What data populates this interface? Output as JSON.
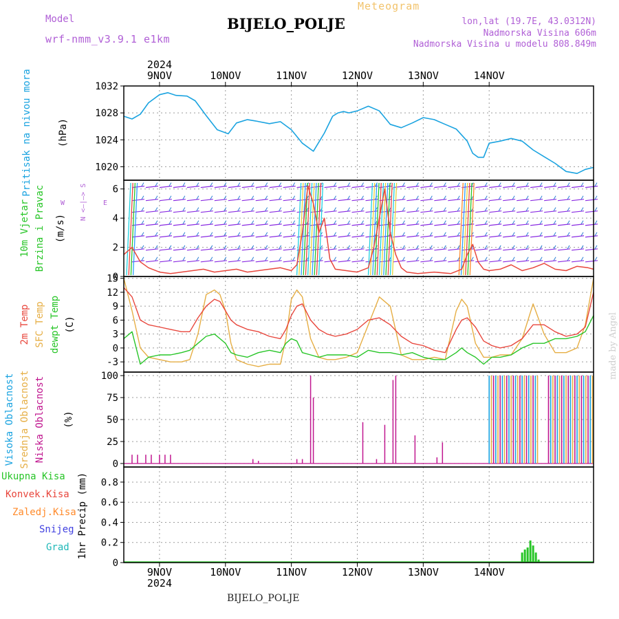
{
  "header": {
    "title": "BIJELO_POLJE",
    "meteogram_label": "Meteogram",
    "model_label": "Model",
    "model_value": "wrf-nmm_v3.9.1  e1km",
    "lonlat": "lon,lat (19.7E, 43.0312N)",
    "elevation": "Nadmorska Visina 606m",
    "model_elevation": "Nadmorska Visina u modelu 808.849m",
    "credit": "made by Angel",
    "footer": "BIJELO_POLJE"
  },
  "colors": {
    "pressure": "#1aa3e0",
    "high_cloud": "#1aa3e0",
    "mid_cloud": "#e6ae44",
    "low_cloud": "#c0168f",
    "temp2m": "#e8463c",
    "sfc_temp": "#e6ae44",
    "dewpt": "#27c527",
    "total_precip": "#27c527",
    "wind_label": "#27c527",
    "legend_purple": "#b05fd6"
  },
  "chart_data": [
    {
      "type": "line",
      "name": "pressure",
      "ylabel": "Pritisak na nivou mora",
      "unit": "(hPa)",
      "ylim": [
        1018,
        1032
      ],
      "yticks": [
        1020,
        1024,
        1028,
        1032
      ],
      "grid": true,
      "xdays": [
        "9NOV",
        "10NOV",
        "11NOV",
        "12NOV",
        "13NOV",
        "14NOV"
      ],
      "xyear": "2024",
      "xlim_hours": [
        -13,
        158
      ],
      "x": [
        -13,
        -10,
        -7,
        -4,
        0,
        3,
        6,
        10,
        13,
        17,
        21,
        25,
        28,
        32,
        35,
        40,
        44,
        48,
        52,
        56,
        60,
        63,
        65,
        67,
        69,
        72,
        76,
        80,
        84,
        88,
        92,
        96,
        100,
        104,
        108,
        112,
        114,
        116,
        118,
        120,
        124,
        128,
        132,
        136,
        140,
        144,
        148,
        152,
        155,
        158
      ],
      "values": [
        1027.5,
        1027.1,
        1027.8,
        1029.5,
        1030.7,
        1031.0,
        1030.6,
        1030.5,
        1029.8,
        1027.6,
        1025.5,
        1024.9,
        1026.5,
        1027.0,
        1026.8,
        1026.4,
        1026.7,
        1025.5,
        1023.5,
        1022.3,
        1025.0,
        1027.5,
        1028.0,
        1028.2,
        1028.0,
        1028.3,
        1029.0,
        1028.3,
        1026.3,
        1025.8,
        1026.5,
        1027.3,
        1027.0,
        1026.3,
        1025.6,
        1023.8,
        1022.0,
        1021.4,
        1021.4,
        1023.5,
        1023.8,
        1024.2,
        1023.8,
        1022.5,
        1021.5,
        1020.5,
        1019.3,
        1019.0,
        1019.6,
        1019.9
      ]
    },
    {
      "type": "line",
      "name": "wind",
      "ylabel_1": "10m Vjetar",
      "ylabel_2": "Brzina i Pravac",
      "unit": "(m/s)",
      "compass_ns": "N  <—|—>  S",
      "compass_w": "W",
      "compass_e": "E",
      "ylim": [
        0,
        6.6
      ],
      "yticks": [
        0,
        2,
        4,
        6
      ],
      "grid": true,
      "x": [
        -13,
        -10,
        -7,
        -4,
        0,
        4,
        8,
        12,
        16,
        20,
        24,
        28,
        32,
        36,
        40,
        44,
        48,
        50,
        52,
        54,
        56,
        58,
        60,
        62,
        64,
        68,
        72,
        76,
        78,
        80,
        82,
        84,
        86,
        88,
        90,
        94,
        100,
        106,
        110,
        112,
        114,
        116,
        118,
        120,
        124,
        128,
        132,
        136,
        140,
        144,
        148,
        152,
        156,
        158
      ],
      "values": [
        1.5,
        2.0,
        1.0,
        0.6,
        0.3,
        0.2,
        0.3,
        0.4,
        0.5,
        0.3,
        0.4,
        0.5,
        0.3,
        0.4,
        0.5,
        0.6,
        0.4,
        0.8,
        3.0,
        6.2,
        5.0,
        3.0,
        4.0,
        1.2,
        0.5,
        0.4,
        0.3,
        0.6,
        2.0,
        4.0,
        6.0,
        3.0,
        1.5,
        0.6,
        0.3,
        0.2,
        0.3,
        0.2,
        0.5,
        1.5,
        2.2,
        1.0,
        0.5,
        0.4,
        0.5,
        0.8,
        0.4,
        0.6,
        0.9,
        0.5,
        0.4,
        0.7,
        0.6,
        0.5
      ]
    },
    {
      "type": "line",
      "name": "temperature",
      "ylabel_1": "2m Temp",
      "ylabel_2": "SFC Temp",
      "ylabel_3": "dewpt Temp",
      "unit": "(C)",
      "ylim": [
        -5.2,
        15.4
      ],
      "yticks": [
        -3,
        0,
        3,
        6,
        9,
        12,
        15
      ],
      "grid": true,
      "x": [
        -13,
        -10,
        -7,
        -4,
        0,
        4,
        8,
        11,
        14,
        17,
        20,
        22,
        24,
        26,
        28,
        32,
        36,
        40,
        44,
        46,
        48,
        50,
        52,
        55,
        58,
        61,
        64,
        68,
        72,
        76,
        80,
        84,
        88,
        92,
        96,
        100,
        104,
        108,
        110,
        112,
        115,
        118,
        121,
        124,
        128,
        132,
        136,
        140,
        144,
        148,
        152,
        155,
        158
      ],
      "sfc": [
        15,
        8,
        0,
        -2,
        -2.5,
        -3,
        -3,
        -2.5,
        3,
        11.5,
        12.5,
        11.5,
        8,
        1,
        -2.5,
        -3.5,
        -4,
        -3.5,
        -3.5,
        2,
        10.5,
        12.5,
        11,
        2,
        -2,
        -2.5,
        -2.5,
        -2,
        -1,
        5,
        11,
        9,
        -1.5,
        -2.5,
        -2.5,
        -2,
        -2.5,
        8,
        10.5,
        9,
        1,
        -2,
        -2,
        -1.5,
        -1.5,
        2,
        9.5,
        3,
        -1,
        -1,
        0,
        5,
        15
      ],
      "t2m": [
        13,
        11,
        6,
        5,
        4.5,
        4,
        3.5,
        3.5,
        6.5,
        9,
        10.5,
        10,
        8,
        6,
        5,
        4,
        3.5,
        2.5,
        2,
        4,
        7,
        9,
        9.5,
        6,
        4,
        3,
        2.5,
        3,
        4,
        6,
        6.5,
        5,
        2.5,
        1,
        0.5,
        -0.5,
        -1,
        4,
        6,
        6.5,
        4.5,
        1.5,
        0.5,
        0,
        0.5,
        2,
        5,
        5,
        3.5,
        2.5,
        3,
        4.5,
        12
      ],
      "dewpt": [
        2,
        3.5,
        -3.5,
        -2,
        -1.5,
        -1.5,
        -1,
        -0.5,
        1,
        2.5,
        3,
        2,
        1,
        -1,
        -1.5,
        -2,
        -1,
        -0.5,
        -1,
        1,
        2,
        1.5,
        -1,
        -1.5,
        -2,
        -1.5,
        -1.5,
        -1.5,
        -2,
        -0.5,
        -1,
        -1,
        -1.5,
        -1,
        -2,
        -2.5,
        -2.5,
        -1,
        0,
        -1,
        -2,
        -3.5,
        -2,
        -2,
        -1.5,
        0,
        1,
        1,
        2,
        2,
        2.5,
        3.5,
        7
      ]
    },
    {
      "type": "bar",
      "name": "cloud",
      "ylabel_1": "Visoka Oblacnost",
      "ylabel_2": "Srednja Oblacnost",
      "ylabel_3": "Niska Oblacnost",
      "unit": "(%)",
      "ylim": [
        -4,
        104
      ],
      "yticks": [
        0,
        25,
        50,
        75,
        100
      ],
      "grid": true,
      "low_x": [
        -10,
        -8,
        -5,
        -3,
        0,
        2,
        4,
        34,
        36,
        50,
        52,
        55,
        56,
        74,
        79,
        82,
        85,
        86,
        93,
        101,
        103
      ],
      "low_values": [
        10,
        10,
        10,
        10,
        10,
        10,
        10,
        5,
        3,
        5,
        5,
        100,
        75,
        47,
        5,
        44,
        95,
        100,
        32,
        7,
        24
      ],
      "dense_start_hour": 120,
      "dense_end_hour": 158,
      "dense_gap_hours": [
        [
          138,
          141
        ]
      ]
    },
    {
      "type": "bar",
      "name": "precip",
      "ylabel_1": "Ukupna Kisa",
      "ylabel_2": "Konvek.Kisa",
      "ylabel_3": "Zaledj.Kisa",
      "ylabel_4": "Snijeg",
      "ylabel_5": "Grad",
      "unit": "1hr Precip (mm)",
      "ylim": [
        0,
        0.95
      ],
      "yticks": [
        0,
        0.2,
        0.4,
        0.6,
        0.8
      ],
      "grid": true,
      "x": [
        132,
        133,
        134,
        135,
        136,
        137,
        138
      ],
      "values": [
        0.1,
        0.13,
        0.15,
        0.22,
        0.17,
        0.1,
        0.03
      ]
    }
  ]
}
